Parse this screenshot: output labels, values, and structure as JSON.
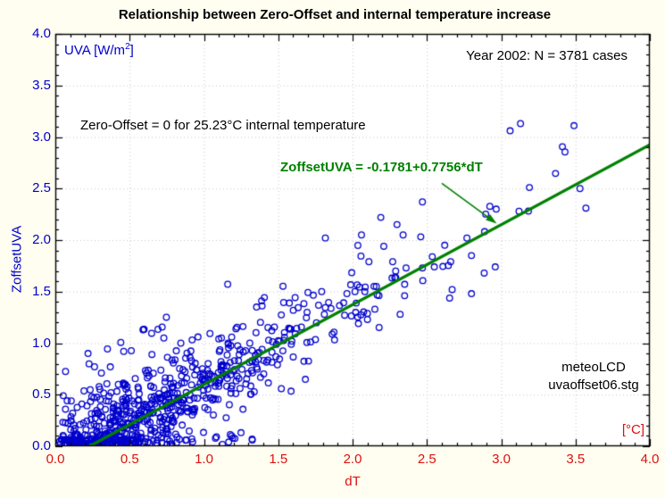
{
  "title": "Relationship between Zero-Offset and internal temperature increase",
  "annotations": {
    "uva_units_prefix": "UVA [W/m",
    "uva_units_sup": "2",
    "uva_units_suffix": "]",
    "year_cases": "Year 2002: N = 3781 cases",
    "zero_offset_note": "Zero-Offset = 0 for 25.23°C internal temperature",
    "equation": "ZoffsetUVA = -0.1781+0.7756*dT",
    "source_line1": "meteoLCD",
    "source_line2": "uvaoffset06.stg",
    "x_units": "[°C]"
  },
  "axes": {
    "x": {
      "label": "dT",
      "min": 0,
      "max": 4,
      "major_step": 0.5,
      "minor_step": 0.1,
      "tick_labels": [
        "0.0",
        "0.5",
        "1.0",
        "1.5",
        "2.0",
        "2.5",
        "3.0",
        "3.5",
        "4.0"
      ],
      "color": "#dd1111"
    },
    "y": {
      "label": "ZoffsetUVA",
      "min": 0,
      "max": 4,
      "major_step": 0.5,
      "minor_step": 0.1,
      "tick_labels": [
        "0.0",
        "0.5",
        "1.0",
        "1.5",
        "2.0",
        "2.5",
        "3.0",
        "3.5",
        "4.0"
      ],
      "color": "#0000cd"
    }
  },
  "chart_data": {
    "type": "scatter",
    "title": "Relationship between Zero-Offset and internal temperature increase",
    "xlabel": "dT [°C]",
    "ylabel": "ZoffsetUVA [W/m²]",
    "xlim": [
      0,
      4
    ],
    "ylim": [
      0,
      4
    ],
    "grid": "dotted, every 0.5 in x and y",
    "legend": "none",
    "n_cases": 3781,
    "year": 2002,
    "fit": {
      "equation": "ZoffsetUVA = -0.1781+0.7756*dT",
      "intercept": -0.1781,
      "slope": 0.7756,
      "zero_offset_zero_at_internal_temp_c": 25.23,
      "line_color": "#008000",
      "line_width": 3.2
    },
    "marker": {
      "shape": "open-circle",
      "color": "#0000cd",
      "radius": 3.3,
      "stroke_width": 1.3
    },
    "points_sample": [
      [
        3.06,
        3.06
      ],
      [
        3.13,
        3.13
      ],
      [
        3.49,
        3.11
      ],
      [
        3.19,
        2.51
      ],
      [
        3.53,
        2.5
      ],
      [
        3.57,
        2.31
      ],
      [
        3.12,
        2.28
      ],
      [
        2.47,
        2.37
      ],
      [
        2.19,
        2.22
      ],
      [
        2.34,
        2.05
      ],
      [
        2.06,
        2.05
      ],
      [
        2.62,
        1.95
      ],
      [
        2.21,
        1.94
      ],
      [
        2.8,
        1.85
      ],
      [
        2.66,
        1.79
      ],
      [
        2.11,
        1.79
      ],
      [
        2.27,
        1.79
      ],
      [
        2.96,
        1.74
      ],
      [
        2.55,
        1.74
      ],
      [
        2.47,
        1.73
      ],
      [
        2.36,
        1.73
      ],
      [
        2.29,
        1.7
      ],
      [
        2.29,
        1.64
      ],
      [
        2.16,
        1.55
      ],
      [
        2.67,
        1.52
      ],
      [
        2.8,
        1.48
      ],
      [
        2.35,
        1.46
      ],
      [
        2.15,
        1.33
      ],
      [
        2.32,
        1.28
      ],
      [
        2.1,
        1.23
      ],
      [
        0.22,
        0.9
      ],
      [
        0.73,
        1.05
      ],
      [
        0.96,
        1.06
      ],
      [
        0.65,
        0.89
      ],
      [
        0.31,
        0.71
      ],
      [
        0.37,
        0.77
      ],
      [
        0.46,
        0.92
      ]
    ],
    "cloud_model": {
      "comment": "dense cloud of ~3781 cases approximated procedurally",
      "seed": 20020423,
      "n_main": 650,
      "x_gamma_scale": 0.42,
      "x_min": 0.02,
      "x_max": 3.6,
      "noise_base": 0.15,
      "noise_slope": 0.05,
      "n_floor": 40,
      "floor_x_max": 1.35,
      "floor_y_max": 0.11,
      "n_upper": 80,
      "upper_x_scale": 0.55,
      "upper_x_max": 2.2,
      "upper_bump_base": 0.2,
      "upper_bump_scale": 0.28,
      "upper_bump_max": 0.85
    },
    "annotation_arrow": {
      "from_xy": [
        2.6,
        2.55
      ],
      "to_xy": [
        2.97,
        2.16
      ],
      "color": "#008000"
    }
  },
  "style": {
    "background": "#fffef0",
    "plot_background": "#ffffff",
    "frame_color": "#000000",
    "grid_color": "#c8c8c8",
    "accent_green": "#008000",
    "accent_blue": "#0000cd",
    "accent_red": "#dd1111"
  }
}
